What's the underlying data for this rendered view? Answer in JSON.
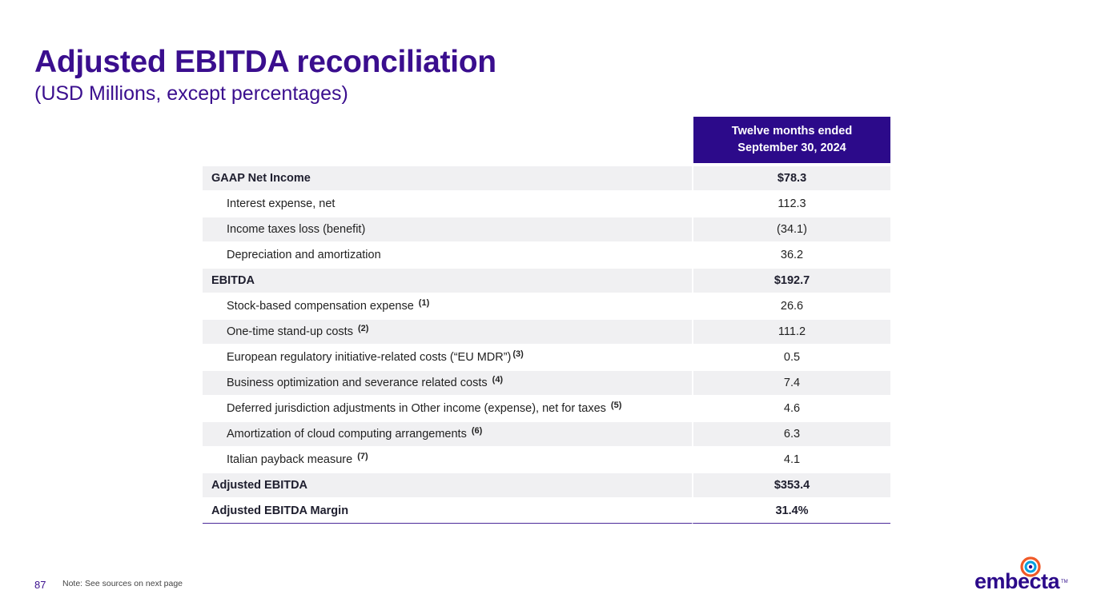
{
  "header": {
    "title": "Adjusted EBITDA reconciliation",
    "subtitle": "(USD Millions, except percentages)"
  },
  "table": {
    "column_header": {
      "line1": "Twelve months ended",
      "line2": "September 30, 2024"
    },
    "rows": [
      {
        "label": "GAAP Net Income",
        "value": "$78.3"
      },
      {
        "label": "Interest expense, net",
        "value": "112.3"
      },
      {
        "label": "Income taxes loss (benefit)",
        "value": "(34.1)"
      },
      {
        "label": "Depreciation and amortization",
        "value": "36.2"
      },
      {
        "label": "EBITDA",
        "value": "$192.7"
      },
      {
        "label": "Stock-based compensation expense",
        "note": "(1)",
        "value": "26.6"
      },
      {
        "label": "One-time stand-up costs",
        "note": "(2)",
        "value": "111.2"
      },
      {
        "label": "European regulatory initiative-related costs (“EU MDR”)",
        "note": "(3)",
        "value": "0.5"
      },
      {
        "label": "Business optimization and severance related costs",
        "note": "(4)",
        "value": "7.4"
      },
      {
        "label": "Deferred jurisdiction adjustments in Other income (expense), net for taxes",
        "note": "(5)",
        "value": "4.6"
      },
      {
        "label": "Amortization of cloud computing arrangements",
        "note": "(6)",
        "value": "6.3"
      },
      {
        "label": "Italian payback measure",
        "note": "(7)",
        "value": "4.1"
      },
      {
        "label": "Adjusted EBITDA",
        "value": "$353.4"
      },
      {
        "label": "Adjusted EBITDA Margin",
        "value": "31.4%"
      }
    ]
  },
  "footer": {
    "page_number": "87",
    "note": "Note: See sources on next page",
    "logo_text": "embecta",
    "logo_tm": "TM"
  },
  "colors": {
    "brand_purple": "#3a0e8e",
    "header_fill": "#2c0a8a",
    "logo_orange": "#f05a28",
    "logo_blue": "#00a0e0",
    "row_shade": "#f0f0f2"
  }
}
